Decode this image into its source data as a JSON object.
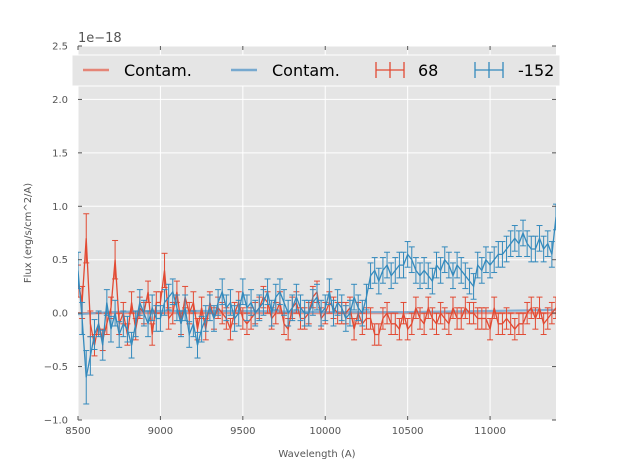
{
  "chart_data": {
    "type": "line",
    "xlabel": "Wavelength (A)",
    "ylabel": "Flux (erg/s/cm^2/A)",
    "offset_text": "1e−18",
    "xlim": [
      8500,
      11400
    ],
    "ylim": [
      -1.0,
      2.5
    ],
    "xticks": [
      8500,
      9000,
      9500,
      10000,
      10500,
      11000
    ],
    "yticks": [
      -1.0,
      -0.5,
      0.0,
      0.5,
      1.0,
      1.5,
      2.0,
      2.5
    ],
    "ytick_labels": [
      "−1.0",
      "−0.5",
      "0.0",
      "0.5",
      "1.0",
      "1.5",
      "2.0",
      "2.5"
    ],
    "grid": true,
    "legend_placement": "top",
    "legend": [
      {
        "label": "Contam.",
        "kind": "line",
        "color": "#e58577"
      },
      {
        "label": "Contam.",
        "kind": "line",
        "color": "#77a9cf"
      },
      {
        "label": "68",
        "kind": "errorbar",
        "color": "#e24a33"
      },
      {
        "label": "-152",
        "kind": "errorbar",
        "color": "#348abd"
      }
    ],
    "series": [
      {
        "name": "Contam.",
        "color": "#e58577",
        "x": [
          8500,
          11400
        ],
        "y": [
          0.0,
          0.0
        ]
      },
      {
        "name": "Contam.",
        "color": "#77a9cf",
        "x": [
          8500,
          8700,
          9000,
          9500,
          10000,
          10500,
          11000,
          11400
        ],
        "y": [
          -0.01,
          0.01,
          0.02,
          0.02,
          0.01,
          0.01,
          0.02,
          0.03
        ]
      },
      {
        "name": "68",
        "color": "#e24a33",
        "error": 0.1,
        "x": [
          8500,
          8525,
          8550,
          8575,
          8600,
          8625,
          8650,
          8675,
          8700,
          8725,
          8750,
          8775,
          8800,
          8825,
          8850,
          8875,
          8900,
          8925,
          8950,
          8975,
          9000,
          9025,
          9050,
          9075,
          9100,
          9125,
          9150,
          9175,
          9200,
          9225,
          9250,
          9275,
          9300,
          9325,
          9350,
          9375,
          9400,
          9425,
          9450,
          9475,
          9500,
          9525,
          9550,
          9575,
          9600,
          9625,
          9650,
          9675,
          9700,
          9725,
          9750,
          9775,
          9800,
          9825,
          9850,
          9875,
          9900,
          9925,
          9950,
          9975,
          10000,
          10025,
          10050,
          10075,
          10100,
          10125,
          10150,
          10175,
          10200,
          10225,
          10250,
          10275,
          10300,
          10325,
          10350,
          10375,
          10400,
          10425,
          10450,
          10475,
          10500,
          10525,
          10550,
          10575,
          10600,
          10625,
          10650,
          10675,
          10700,
          10725,
          10750,
          10775,
          10800,
          10825,
          10850,
          10875,
          10900,
          10925,
          10950,
          10975,
          11000,
          11025,
          11050,
          11075,
          11100,
          11125,
          11150,
          11175,
          11200,
          11225,
          11250,
          11275,
          11300,
          11325,
          11350,
          11375,
          11400
        ],
        "y": [
          0.3,
          0.1,
          0.7,
          -0.1,
          -0.3,
          -0.1,
          -0.25,
          -0.1,
          0.05,
          0.5,
          -0.1,
          0.0,
          -0.2,
          0.1,
          -0.15,
          0.05,
          0.0,
          0.2,
          -0.2,
          0.1,
          0.1,
          0.4,
          -0.05,
          0.0,
          0.2,
          -0.1,
          0.15,
          0.0,
          0.1,
          -0.15,
          0.05,
          -0.15,
          0.1,
          -0.05,
          0.05,
          0.0,
          -0.05,
          -0.15,
          0.0,
          0.1,
          -0.05,
          -0.1,
          -0.05,
          0.0,
          0.05,
          0.15,
          0.1,
          -0.05,
          0.0,
          0.1,
          -0.1,
          -0.15,
          0.05,
          0.1,
          -0.05,
          -0.05,
          0.0,
          0.15,
          0.2,
          -0.05,
          0.0,
          0.1,
          0.05,
          0.0,
          0.0,
          0.0,
          0.05,
          -0.15,
          0.0,
          -0.1,
          -0.05,
          -0.05,
          -0.2,
          -0.2,
          -0.05,
          0.0,
          -0.1,
          -0.1,
          -0.15,
          0.0,
          -0.15,
          -0.1,
          0.05,
          -0.05,
          -0.1,
          0.05,
          -0.05,
          -0.1,
          0.0,
          -0.05,
          -0.1,
          0.05,
          -0.05,
          -0.05,
          0.05,
          0.0,
          0.0,
          -0.05,
          -0.05,
          -0.05,
          -0.15,
          0.05,
          -0.1,
          -0.1,
          -0.05,
          -0.1,
          -0.15,
          -0.1,
          -0.1,
          0.0,
          0.05,
          -0.05,
          0.05,
          -0.1,
          -0.05,
          0.0,
          0.05
        ],
        "errors": [
          0.15,
          0.15,
          0.23,
          0.12,
          0.1,
          0.1,
          0.1,
          0.1,
          0.1,
          0.18,
          0.1,
          0.1,
          0.1,
          0.1,
          0.1,
          0.1,
          0.1,
          0.1,
          0.1,
          0.1,
          0.1,
          0.16,
          0.1,
          0.1,
          0.1,
          0.1,
          0.1,
          0.1,
          0.1,
          0.1,
          0.1,
          0.1,
          0.1,
          0.1,
          0.1,
          0.1,
          0.1,
          0.1,
          0.1,
          0.1,
          0.1,
          0.1,
          0.1,
          0.1,
          0.1,
          0.1,
          0.1,
          0.1,
          0.1,
          0.1,
          0.1,
          0.1,
          0.1,
          0.1,
          0.1,
          0.1,
          0.1,
          0.1,
          0.1,
          0.1,
          0.1,
          0.1,
          0.1,
          0.1,
          0.1,
          0.1,
          0.1,
          0.1,
          0.1,
          0.1,
          0.1,
          0.1,
          0.1,
          0.1,
          0.1,
          0.1,
          0.1,
          0.1,
          0.1,
          0.1,
          0.1,
          0.1,
          0.1,
          0.1,
          0.1,
          0.1,
          0.1,
          0.1,
          0.1,
          0.1,
          0.1,
          0.1,
          0.1,
          0.1,
          0.1,
          0.1,
          0.1,
          0.1,
          0.1,
          0.1,
          0.1,
          0.1,
          0.1,
          0.1,
          0.1,
          0.1,
          0.1,
          0.1,
          0.1,
          0.1,
          0.1,
          0.1,
          0.1,
          0.1,
          0.1,
          0.1,
          0.1
        ]
      },
      {
        "name": "-152",
        "color": "#348abd",
        "error": 0.1,
        "x": [
          8500,
          8525,
          8550,
          8575,
          8600,
          8625,
          8650,
          8675,
          8700,
          8725,
          8750,
          8775,
          8800,
          8825,
          8850,
          8875,
          8900,
          8925,
          8950,
          8975,
          9000,
          9025,
          9050,
          9075,
          9100,
          9125,
          9150,
          9175,
          9200,
          9225,
          9250,
          9275,
          9300,
          9325,
          9350,
          9375,
          9400,
          9425,
          9450,
          9475,
          9500,
          9525,
          9550,
          9575,
          9600,
          9625,
          9650,
          9675,
          9700,
          9725,
          9750,
          9775,
          9800,
          9825,
          9850,
          9875,
          9900,
          9925,
          9950,
          9975,
          10000,
          10025,
          10050,
          10075,
          10100,
          10125,
          10150,
          10175,
          10200,
          10225,
          10250,
          10275,
          10300,
          10325,
          10350,
          10375,
          10400,
          10425,
          10450,
          10475,
          10500,
          10525,
          10550,
          10575,
          10600,
          10625,
          10650,
          10675,
          10700,
          10725,
          10750,
          10775,
          10800,
          10825,
          10850,
          10875,
          10900,
          10925,
          10950,
          10975,
          11000,
          11025,
          11050,
          11075,
          11100,
          11125,
          11150,
          11175,
          11200,
          11225,
          11250,
          11275,
          11300,
          11325,
          11350,
          11375,
          11400
        ],
        "y": [
          0.4,
          -0.05,
          -0.6,
          -0.4,
          -0.2,
          -0.1,
          -0.3,
          0.1,
          -0.15,
          0.0,
          -0.2,
          -0.1,
          -0.15,
          -0.3,
          -0.1,
          0.1,
          0.0,
          -0.1,
          0.05,
          -0.05,
          -0.05,
          0.1,
          0.15,
          0.2,
          0.05,
          -0.1,
          0.05,
          -0.2,
          -0.1,
          -0.3,
          -0.15,
          -0.05,
          0.05,
          -0.05,
          0.1,
          0.2,
          0.05,
          0.1,
          -0.05,
          0.0,
          0.2,
          0.05,
          0.1,
          0.0,
          0.05,
          0.1,
          0.2,
          0.0,
          0.15,
          0.2,
          0.1,
          0.0,
          0.05,
          0.15,
          0.05,
          0.0,
          0.0,
          0.1,
          0.15,
          0.0,
          0.05,
          0.2,
          0.0,
          0.1,
          0.05,
          -0.05,
          0.0,
          0.15,
          0.05,
          0.0,
          0.15,
          0.35,
          0.4,
          0.3,
          0.4,
          0.45,
          0.35,
          0.4,
          0.45,
          0.45,
          0.55,
          0.5,
          0.4,
          0.35,
          0.4,
          0.35,
          0.3,
          0.45,
          0.4,
          0.5,
          0.45,
          0.35,
          0.45,
          0.4,
          0.35,
          0.3,
          0.25,
          0.45,
          0.4,
          0.5,
          0.45,
          0.5,
          0.55,
          0.55,
          0.6,
          0.65,
          0.7,
          0.65,
          0.75,
          0.65,
          0.6,
          0.6,
          0.7,
          0.6,
          0.65,
          0.55,
          0.9
        ],
        "errors": [
          0.17,
          0.15,
          0.25,
          0.18,
          0.14,
          0.12,
          0.14,
          0.12,
          0.12,
          0.12,
          0.12,
          0.12,
          0.12,
          0.12,
          0.12,
          0.12,
          0.12,
          0.12,
          0.12,
          0.12,
          0.12,
          0.12,
          0.12,
          0.12,
          0.12,
          0.12,
          0.12,
          0.12,
          0.12,
          0.12,
          0.12,
          0.12,
          0.12,
          0.12,
          0.12,
          0.12,
          0.12,
          0.12,
          0.12,
          0.12,
          0.12,
          0.12,
          0.12,
          0.12,
          0.12,
          0.12,
          0.12,
          0.12,
          0.12,
          0.12,
          0.12,
          0.12,
          0.12,
          0.12,
          0.12,
          0.12,
          0.12,
          0.12,
          0.12,
          0.12,
          0.12,
          0.12,
          0.12,
          0.12,
          0.12,
          0.12,
          0.12,
          0.12,
          0.12,
          0.12,
          0.12,
          0.12,
          0.12,
          0.12,
          0.12,
          0.12,
          0.12,
          0.12,
          0.12,
          0.12,
          0.12,
          0.12,
          0.12,
          0.12,
          0.12,
          0.12,
          0.12,
          0.12,
          0.12,
          0.12,
          0.12,
          0.12,
          0.12,
          0.12,
          0.12,
          0.12,
          0.12,
          0.12,
          0.12,
          0.12,
          0.12,
          0.12,
          0.12,
          0.12,
          0.12,
          0.12,
          0.12,
          0.12,
          0.12,
          0.12,
          0.12,
          0.12,
          0.12,
          0.12,
          0.12,
          0.12,
          0.12
        ]
      }
    ]
  }
}
